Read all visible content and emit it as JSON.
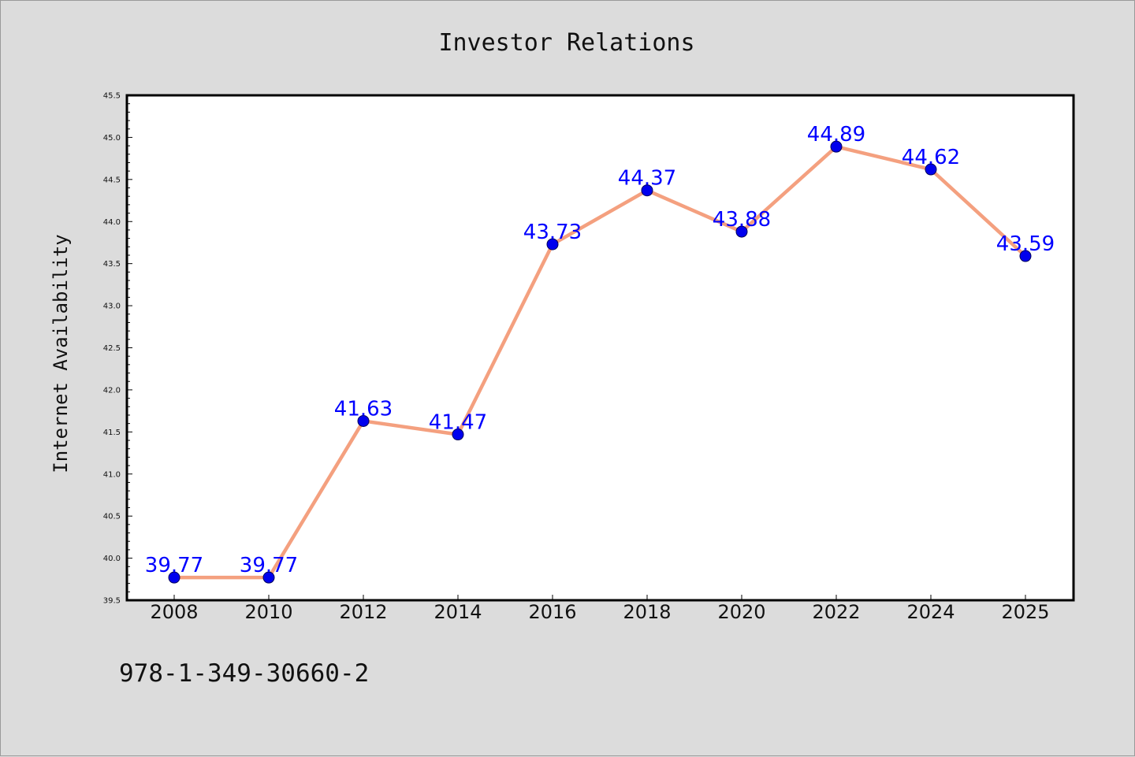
{
  "chart_data": {
    "type": "line",
    "title": "Investor Relations",
    "xlabel": "",
    "ylabel": "Internet Availability",
    "categories": [
      "2008",
      "2010",
      "2012",
      "2014",
      "2016",
      "2018",
      "2020",
      "2022",
      "2024",
      "2025"
    ],
    "series": [
      {
        "values": [
          39.77,
          39.77,
          41.63,
          41.47,
          43.73,
          44.37,
          43.88,
          44.89,
          44.62,
          43.59
        ]
      }
    ],
    "data_labels": [
      "39.77",
      "39.77",
      "41.63",
      "41.47",
      "43.73",
      "44.37",
      "43.88",
      "44.89",
      "44.62",
      "43.59"
    ],
    "ylim": [
      39.5,
      45.5
    ],
    "yticks": [
      "39.5",
      "40.0",
      "40.5",
      "41.0",
      "41.5",
      "42.0",
      "42.5",
      "43.0",
      "43.5",
      "44.0",
      "44.5",
      "45.0",
      "45.5"
    ],
    "grid": false,
    "legend": "none",
    "line_color": "#f4a07f",
    "marker_color": "#0000ee",
    "label_color": "#0000ff"
  },
  "footer": {
    "code": "978-1-349-30660-2"
  }
}
